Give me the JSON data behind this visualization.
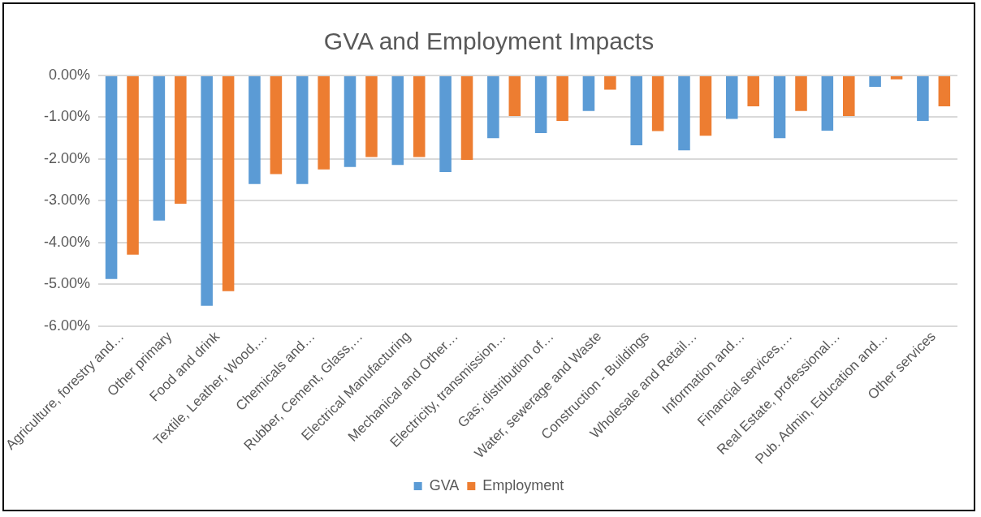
{
  "chart_data": {
    "type": "bar",
    "title": "GVA and Employment Impacts",
    "categories": [
      "Agriculture, forestry and…",
      "Other primary",
      "Food and drink",
      "Textile, Leather, Wood,…",
      "Chemicals and…",
      "Rubber, Cement, Glass,…",
      "Electrical Manufacturing",
      "Mechanical and Other…",
      "Electricity, transmission…",
      "Gas; distribution of…",
      "Water, sewerage and Waste",
      "Construction - Buildings",
      "Wholesale and Retail…",
      "Information and…",
      "Financial services,…",
      "Real Estate, professional…",
      "Pub. Admin, Education and…",
      "Other services"
    ],
    "series": [
      {
        "name": "GVA",
        "color": "#5b9bd5",
        "values": [
          -4.87,
          -3.47,
          -5.51,
          -2.6,
          -2.6,
          -2.19,
          -2.14,
          -2.31,
          -1.5,
          -1.38,
          -0.85,
          -1.67,
          -1.79,
          -1.04,
          -1.5,
          -1.32,
          -0.27,
          -1.09
        ]
      },
      {
        "name": "Employment",
        "color": "#ed7d31",
        "values": [
          -4.29,
          -3.07,
          -5.16,
          -2.36,
          -2.25,
          -1.95,
          -1.95,
          -2.02,
          -0.97,
          -1.09,
          -0.34,
          -1.33,
          -1.44,
          -0.74,
          -0.85,
          -0.97,
          -0.09,
          -0.74
        ]
      }
    ],
    "ylim": [
      -6,
      0
    ],
    "yticks": [
      {
        "value": 0,
        "label": "0.00%"
      },
      {
        "value": -1,
        "label": "-1.00%"
      },
      {
        "value": -2,
        "label": "-2.00%"
      },
      {
        "value": -3,
        "label": "-3.00%"
      },
      {
        "value": -4,
        "label": "-4.00%"
      },
      {
        "value": -5,
        "label": "-5.00%"
      },
      {
        "value": -6,
        "label": "-6.00%"
      }
    ],
    "grid": "y",
    "legend": "bottom"
  }
}
